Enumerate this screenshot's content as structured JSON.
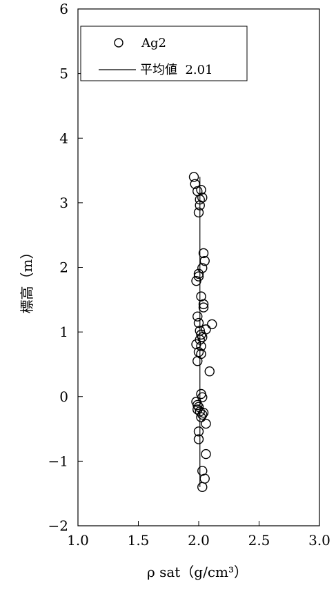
{
  "chart_data": {
    "type": "scatter",
    "xlabel": "ρ sat（g/cm³）",
    "ylabel": "標高（m）",
    "xlim": [
      1.0,
      3.0
    ],
    "ylim": [
      -2,
      6
    ],
    "x_ticks": [
      "1.0",
      "1.5",
      "2.0",
      "2.5",
      "3.0"
    ],
    "y_ticks": [
      "-2",
      "-1",
      "0",
      "1",
      "2",
      "3",
      "4",
      "5",
      "6"
    ],
    "grid": false,
    "legend_position": "top-left",
    "series": [
      {
        "name": "Ag2",
        "marker": "open-circle",
        "points": [
          {
            "x": 1.96,
            "y": 3.4
          },
          {
            "x": 1.97,
            "y": 3.29
          },
          {
            "x": 1.99,
            "y": 3.18
          },
          {
            "x": 2.02,
            "y": 3.2
          },
          {
            "x": 2.03,
            "y": 3.08
          },
          {
            "x": 2.01,
            "y": 3.05
          },
          {
            "x": 2.01,
            "y": 2.96
          },
          {
            "x": 2.0,
            "y": 2.85
          },
          {
            "x": 2.04,
            "y": 2.22
          },
          {
            "x": 2.05,
            "y": 2.1
          },
          {
            "x": 2.03,
            "y": 1.99
          },
          {
            "x": 2.0,
            "y": 1.9
          },
          {
            "x": 2.0,
            "y": 1.86
          },
          {
            "x": 1.98,
            "y": 1.79
          },
          {
            "x": 2.02,
            "y": 1.55
          },
          {
            "x": 2.04,
            "y": 1.43
          },
          {
            "x": 2.04,
            "y": 1.38
          },
          {
            "x": 1.99,
            "y": 1.24
          },
          {
            "x": 2.0,
            "y": 1.14
          },
          {
            "x": 2.11,
            "y": 1.12
          },
          {
            "x": 2.06,
            "y": 1.04
          },
          {
            "x": 2.01,
            "y": 1.02
          },
          {
            "x": 2.02,
            "y": 0.96
          },
          {
            "x": 2.03,
            "y": 0.92
          },
          {
            "x": 2.01,
            "y": 0.88
          },
          {
            "x": 2.02,
            "y": 0.78
          },
          {
            "x": 1.98,
            "y": 0.81
          },
          {
            "x": 2.0,
            "y": 0.69
          },
          {
            "x": 2.02,
            "y": 0.66
          },
          {
            "x": 1.99,
            "y": 0.55
          },
          {
            "x": 2.09,
            "y": 0.39
          },
          {
            "x": 2.02,
            "y": 0.04
          },
          {
            "x": 2.03,
            "y": -0.01
          },
          {
            "x": 1.98,
            "y": -0.08
          },
          {
            "x": 1.99,
            "y": -0.13
          },
          {
            "x": 2.0,
            "y": -0.16
          },
          {
            "x": 1.99,
            "y": -0.2
          },
          {
            "x": 2.01,
            "y": -0.23
          },
          {
            "x": 2.04,
            "y": -0.25
          },
          {
            "x": 2.03,
            "y": -0.28
          },
          {
            "x": 2.02,
            "y": -0.32
          },
          {
            "x": 2.06,
            "y": -0.42
          },
          {
            "x": 2.0,
            "y": -0.54
          },
          {
            "x": 2.0,
            "y": -0.66
          },
          {
            "x": 2.06,
            "y": -0.89
          },
          {
            "x": 2.03,
            "y": -1.15
          },
          {
            "x": 2.05,
            "y": -1.27
          },
          {
            "x": 2.03,
            "y": -1.4
          }
        ]
      },
      {
        "name": "平均値  2.01",
        "type": "line",
        "points": [
          {
            "x": 2.01,
            "y": -1.4
          },
          {
            "x": 2.01,
            "y": 3.4
          }
        ]
      }
    ]
  }
}
